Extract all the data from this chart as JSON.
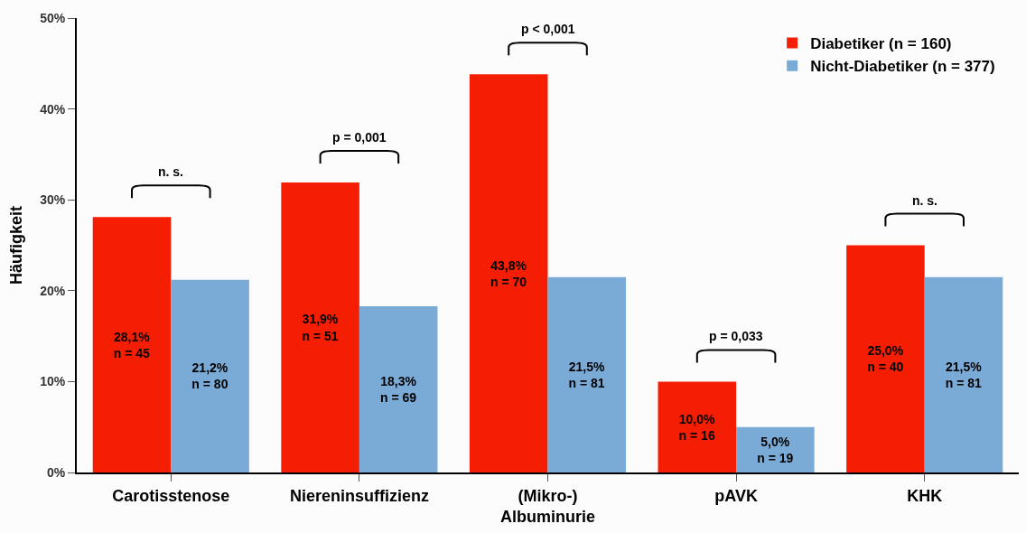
{
  "chart_data": {
    "type": "bar",
    "ylabel": "Häufigkeit",
    "categories": [
      "Carotisstenose",
      "Niereninsuffizienz",
      "(Mikro-)\nAlbuminurie",
      "pAVK",
      "KHK"
    ],
    "series": [
      {
        "name": "Diabetiker (n = 160)",
        "color": "#f61e02",
        "values": [
          28.1,
          31.9,
          43.8,
          10.0,
          25.0
        ],
        "value_labels": [
          "28,1%\nn = 45",
          "31,9%\nn = 51",
          "43,8%\nn = 70",
          "10,0%\nn = 16",
          "25,0%\nn = 40"
        ]
      },
      {
        "name": "Nicht-Diabetiker (n = 377)",
        "color": "#7aaad6",
        "values": [
          21.2,
          18.3,
          21.5,
          5.0,
          21.5
        ],
        "value_labels": [
          "21,2%\nn = 80",
          "18,3%\nn = 69",
          "21,5%\nn = 81",
          "5,0%\nn = 19",
          "21,5%\nn = 81"
        ]
      }
    ],
    "ylim": [
      0,
      50
    ],
    "yticks": [
      {
        "value": 0,
        "label": "0%"
      },
      {
        "value": 10,
        "label": "10%"
      },
      {
        "value": 20,
        "label": "20%"
      },
      {
        "value": 30,
        "label": "30%"
      },
      {
        "value": 40,
        "label": "40%"
      },
      {
        "value": 50,
        "label": "50%"
      }
    ],
    "annotations": [
      "n. s.",
      "p = 0,001",
      "p < 0,001",
      "p = 0,033",
      "n. s."
    ],
    "legend": "top right"
  }
}
